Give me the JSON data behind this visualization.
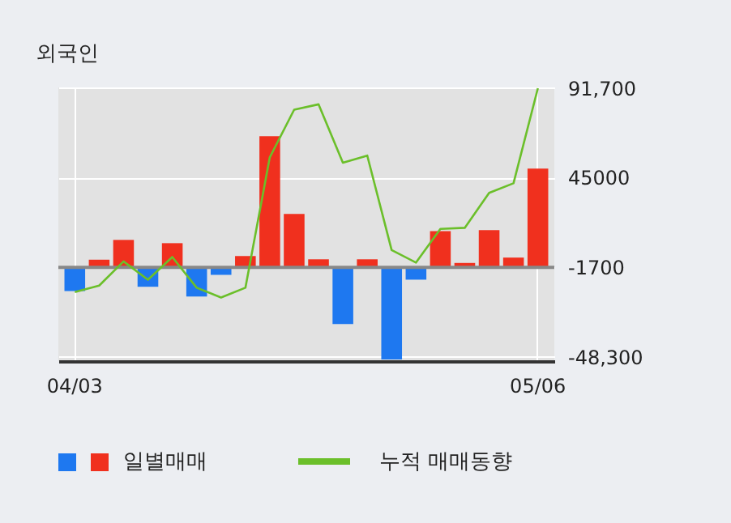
{
  "chart_data": {
    "type": "bar",
    "title": "외국인",
    "categories": [
      "04/03",
      null,
      null,
      null,
      null,
      null,
      null,
      null,
      null,
      null,
      null,
      null,
      null,
      null,
      null,
      null,
      null,
      null,
      null,
      "05/06"
    ],
    "series": [
      {
        "name": "일별매매",
        "colors": [
          "#1e78f0",
          "#f0301e",
          "#f0301e",
          "#1e78f0",
          "#f0301e",
          "#1e78f0",
          "#1e78f0",
          "#f0301e",
          "#f0301e",
          "#f0301e",
          "#f0301e",
          "#1e78f0",
          "#f0301e",
          "#1e78f0",
          "#1e78f0",
          "#f0301e",
          "#f0301e",
          "#f0301e",
          "#f0301e",
          "#f0301e"
        ],
        "base": [
          -1700,
          -1700,
          -1700,
          -1700,
          -1700,
          -1700,
          -1700,
          -1700,
          -1700,
          -1700,
          -1700,
          -1700,
          -1700,
          -1700,
          -1700,
          -1700,
          -1700,
          -1700,
          -1700,
          -1700
        ],
        "values": [
          -12300,
          4000,
          14300,
          -10100,
          12600,
          -15200,
          -3900,
          5900,
          68300,
          27800,
          4200,
          -29500,
          4200,
          -48000,
          -6400,
          18900,
          2300,
          19400,
          5100,
          51400
        ]
      },
      {
        "name": "누적 매매동향",
        "type": "line",
        "color": "#6bbf2a",
        "values": [
          -14600,
          -11200,
          1400,
          -8100,
          3700,
          -12300,
          -17400,
          -12300,
          55600,
          80400,
          83200,
          52800,
          56500,
          7300,
          800,
          18300,
          18900,
          37100,
          42100,
          91600
        ]
      }
    ],
    "ylim": [
      -50500,
      92000
    ],
    "yticks": [
      {
        "value": 91700,
        "label": "91,700"
      },
      {
        "value": 45000,
        "label": "45000"
      },
      {
        "value": -1700,
        "label": "-1700"
      },
      {
        "value": -48300,
        "label": "-48,300"
      }
    ],
    "ref_lines": [
      {
        "axis": "y",
        "value": -1700,
        "color": "#888888"
      }
    ],
    "grid": true,
    "legend": "bottom",
    "marker": "none"
  }
}
